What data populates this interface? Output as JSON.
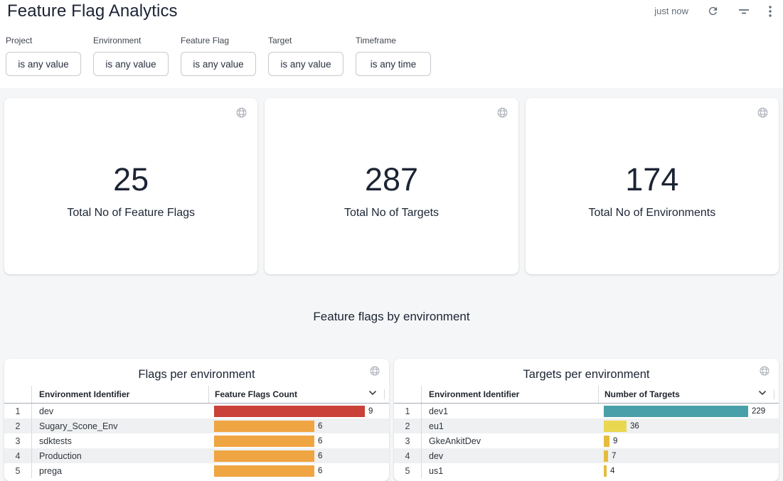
{
  "header": {
    "title": "Feature Flag Analytics",
    "refresh_status": "just now",
    "icons": [
      "refresh-icon",
      "filter-icon",
      "more-vert-icon"
    ]
  },
  "filters": [
    {
      "label": "Project",
      "value": "is any value"
    },
    {
      "label": "Environment",
      "value": "is any value"
    },
    {
      "label": "Feature Flag",
      "value": "is any value"
    },
    {
      "label": "Target",
      "value": "is any value"
    },
    {
      "label": "Timeframe",
      "value": "is any time"
    }
  ],
  "kpis": [
    {
      "value": "25",
      "label": "Total No of Feature Flags"
    },
    {
      "value": "287",
      "label": "Total No of Targets"
    },
    {
      "value": "174",
      "label": "Total No of Environments"
    }
  ],
  "section_title": "Feature flags by environment",
  "tables": [
    {
      "title": "Flags per environment",
      "columns": [
        "Environment Identifier",
        "Feature Flags Count"
      ],
      "rows": [
        {
          "index": "1",
          "id": "dev",
          "value": 9,
          "color": "#c94138"
        },
        {
          "index": "2",
          "id": "Sugary_Scone_Env",
          "value": 6,
          "color": "#f0a543"
        },
        {
          "index": "3",
          "id": "sdktests",
          "value": 6,
          "color": "#f0a543"
        },
        {
          "index": "4",
          "id": "Production",
          "value": 6,
          "color": "#f0a543"
        },
        {
          "index": "5",
          "id": "prega",
          "value": 6,
          "color": "#f0a543"
        }
      ]
    },
    {
      "title": "Targets per environment",
      "columns": [
        "Environment Identifier",
        "Number of Targets"
      ],
      "rows": [
        {
          "index": "1",
          "id": "dev1",
          "value": 229,
          "color": "#4aa0a8"
        },
        {
          "index": "2",
          "id": "eu1",
          "value": 36,
          "color": "#e9d84f"
        },
        {
          "index": "3",
          "id": "GkeAnkitDev",
          "value": 9,
          "color": "#e5bb3e"
        },
        {
          "index": "4",
          "id": "dev",
          "value": 7,
          "color": "#e5bb3e"
        },
        {
          "index": "5",
          "id": "us1",
          "value": 4,
          "color": "#e5bb3e"
        }
      ]
    }
  ],
  "chart_data": [
    {
      "type": "bar",
      "orientation": "horizontal",
      "title": "Flags per environment",
      "categories": [
        "dev",
        "Sugary_Scone_Env",
        "sdktests",
        "Production",
        "prega"
      ],
      "values": [
        9,
        6,
        6,
        6,
        6
      ],
      "xlabel": "Feature Flags Count",
      "ylabel": "Environment Identifier",
      "colors": [
        "#c94138",
        "#f0a543",
        "#f0a543",
        "#f0a543",
        "#f0a543"
      ],
      "xlim": [
        0,
        9
      ],
      "grid": false,
      "legend": "none"
    },
    {
      "type": "bar",
      "orientation": "horizontal",
      "title": "Targets per environment",
      "categories": [
        "dev1",
        "eu1",
        "GkeAnkitDev",
        "dev",
        "us1"
      ],
      "values": [
        229,
        36,
        9,
        7,
        4
      ],
      "xlabel": "Number of Targets",
      "ylabel": "Environment Identifier",
      "colors": [
        "#4aa0a8",
        "#e9d84f",
        "#e5bb3e",
        "#e5bb3e",
        "#e5bb3e"
      ],
      "xlim": [
        0,
        229
      ],
      "grid": false,
      "legend": "none"
    }
  ],
  "colors": {
    "accent_text": "#1c2434",
    "bar_red": "#c94138",
    "bar_orange": "#f0a543",
    "bar_teal": "#4aa0a8",
    "bar_yellow": "#e9d84f",
    "bar_gold": "#e5bb3e",
    "row_stripe": "#eef0f2"
  }
}
